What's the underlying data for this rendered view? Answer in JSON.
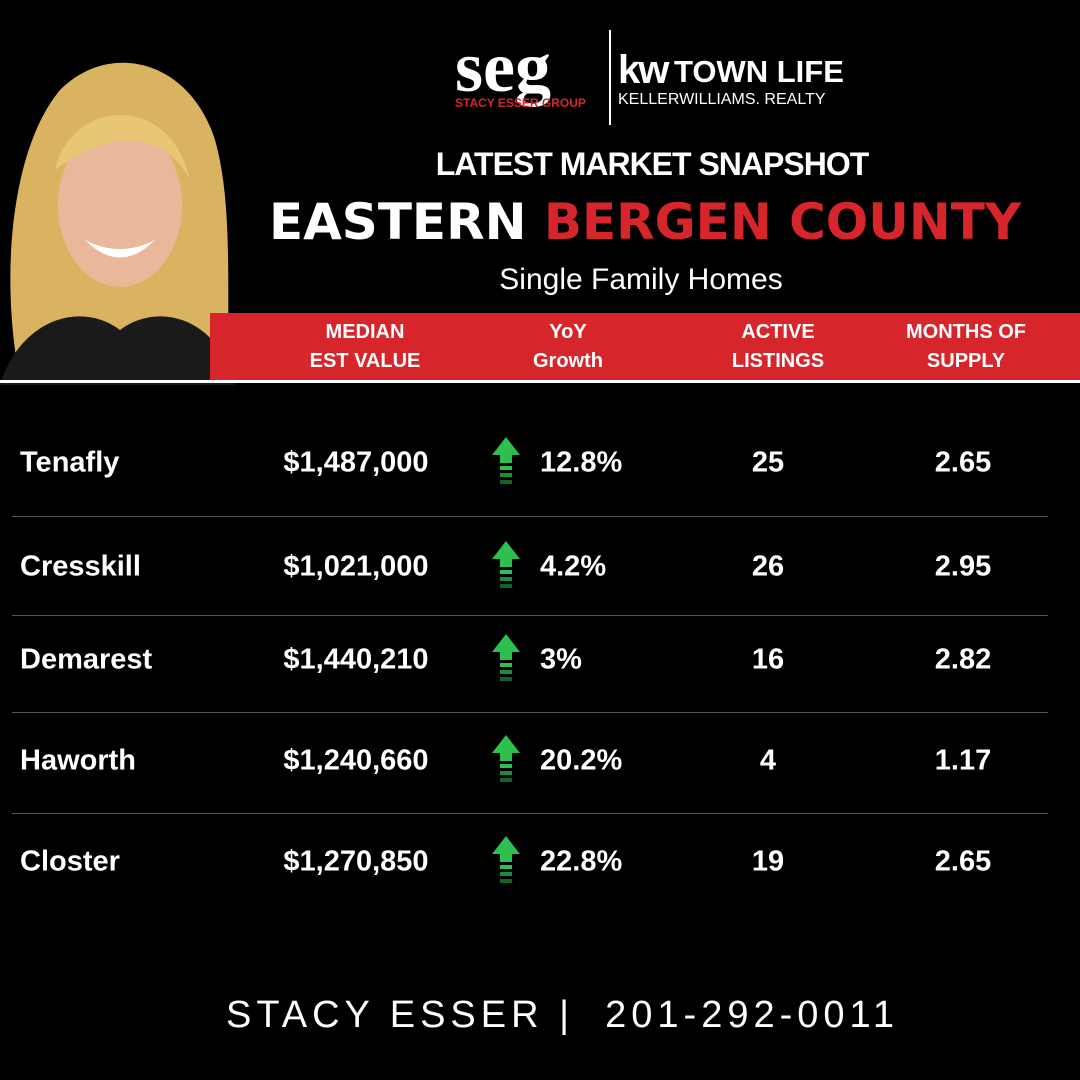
{
  "logo": {
    "mark": "seg",
    "group": "STACY ESSER GROUP",
    "kw": "kw",
    "office": "TOWN LIFE",
    "brokerage": "KELLERWILLIAMS. REALTY"
  },
  "header": {
    "kicker": "LATEST MARKET SNAPSHOT",
    "title_white": "EASTERN",
    "title_red": "BERGEN COUNTY",
    "subtitle": "Single Family Homes"
  },
  "table": {
    "columns": [
      [
        "MEDIAN",
        "EST VALUE"
      ],
      [
        "YoY",
        "Growth"
      ],
      [
        "ACTIVE",
        "LISTINGS"
      ],
      [
        "MONTHS OF",
        "SUPPLY"
      ]
    ],
    "rows": [
      [
        "Tenafly",
        "$1,487,000",
        "12.8%",
        "25",
        "2.65"
      ],
      [
        "Cresskill",
        "$1,021,000",
        "4.2%",
        "26",
        "2.95"
      ],
      [
        "Demarest",
        "$1,440,210",
        "3%",
        "16",
        "2.82"
      ],
      [
        "Haworth",
        "$1,240,660",
        "20.2%",
        "4",
        "1.17"
      ],
      [
        "Closter",
        "$1,270,850",
        "22.8%",
        "19",
        "2.65"
      ]
    ]
  },
  "footer": {
    "name": "STACY ESSER",
    "separator": "|",
    "phone": "201-292-0011"
  }
}
